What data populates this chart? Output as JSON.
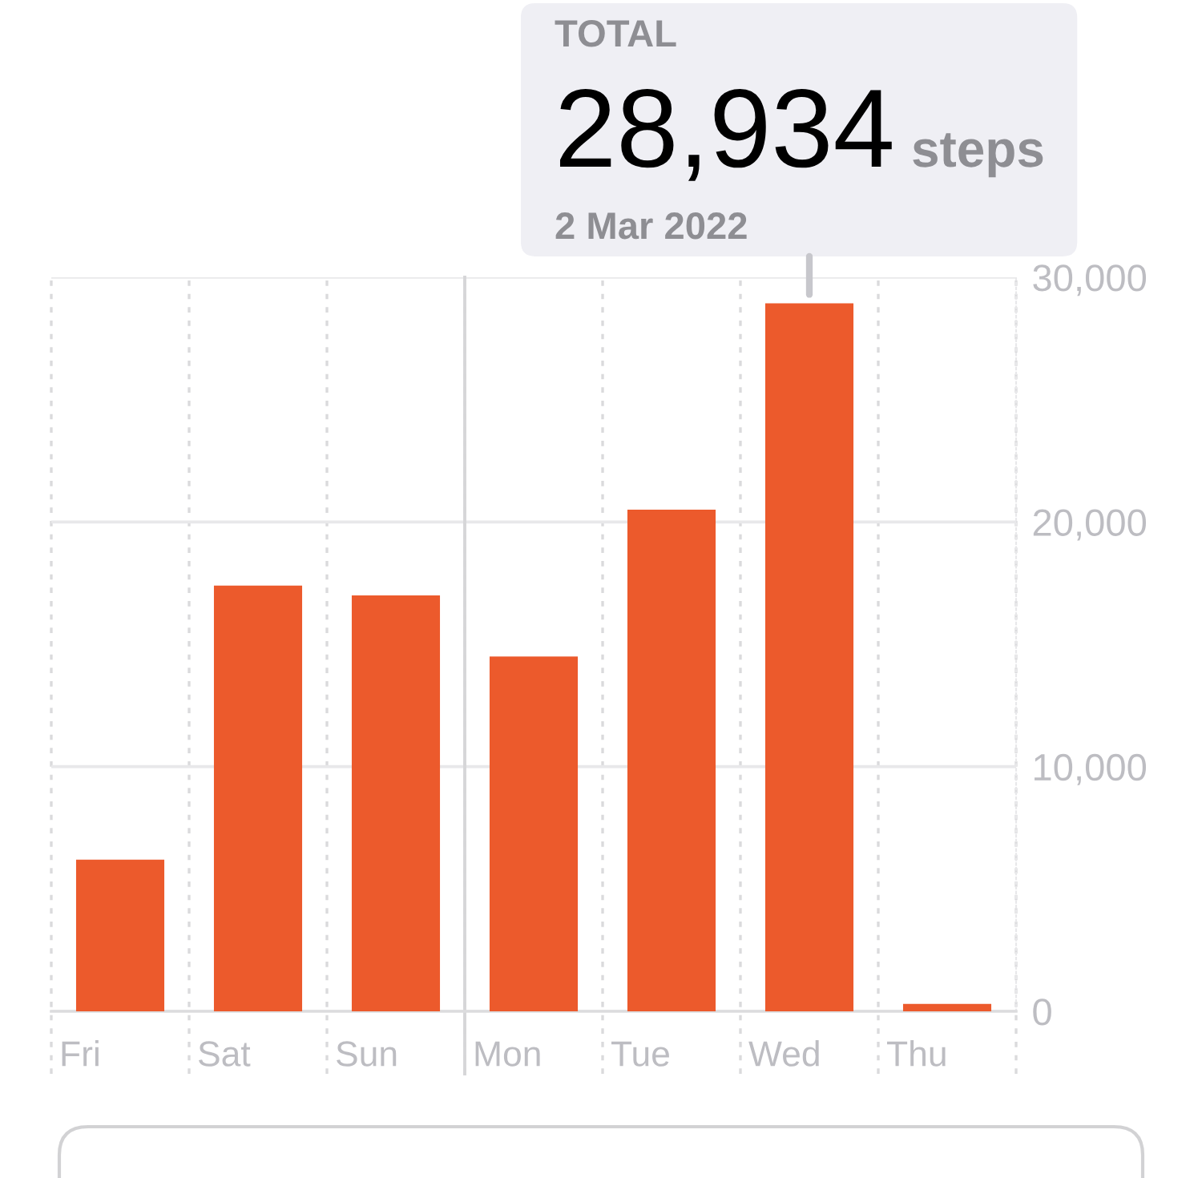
{
  "chart_data": {
    "type": "bar",
    "categories": [
      "Fri",
      "Sat",
      "Sun",
      "Mon",
      "Tue",
      "Wed",
      "Thu"
    ],
    "values": [
      6200,
      17400,
      17000,
      14500,
      20500,
      28934,
      300
    ],
    "color": "#ec5a2c",
    "ylim": [
      0,
      30000
    ],
    "yticks": [
      0,
      {
        "value": 10000,
        "label": "10,000"
      },
      {
        "value": 20000,
        "label": "20,000"
      },
      {
        "value": 30000,
        "label": "30,000"
      }
    ],
    "grid": true,
    "ref_lines": [
      {
        "axis": "x",
        "value": "Mon",
        "line_style": "solid",
        "color": "#d6d6d8"
      }
    ],
    "annotations": [
      "TOTAL",
      {
        "text": "28,934 steps",
        "x": "Wed",
        "y": 28934
      },
      "2 Mar 2022"
    ]
  }
}
